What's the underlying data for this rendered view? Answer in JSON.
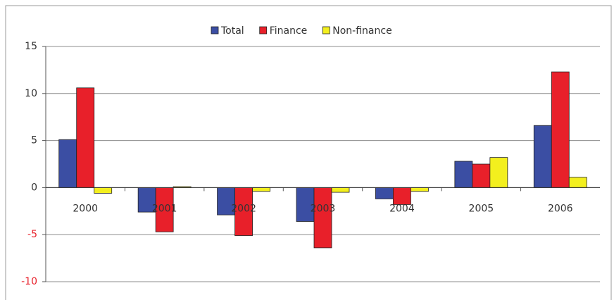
{
  "chart_data": {
    "type": "bar",
    "categories": [
      "2000",
      "2001",
      "2002",
      "2003",
      "2004",
      "2005",
      "2006"
    ],
    "series": [
      {
        "name": "Total",
        "color": "#3b4ea3",
        "values": [
          5.1,
          -2.6,
          -2.9,
          -3.6,
          -1.2,
          2.8,
          6.6
        ]
      },
      {
        "name": "Finance",
        "color": "#e8202a",
        "values": [
          10.6,
          -4.7,
          -5.1,
          -6.4,
          -1.8,
          2.5,
          12.3
        ]
      },
      {
        "name": "Non-finance",
        "color": "#f3ef1e",
        "values": [
          -0.6,
          0.1,
          -0.4,
          -0.5,
          -0.4,
          3.2,
          1.1
        ]
      }
    ],
    "ylim": [
      -10,
      15
    ],
    "yticks": [
      -10,
      -5,
      0,
      5,
      10,
      15
    ],
    "grid": true,
    "negative_tick_label_color": "#e8202a",
    "legend": "top"
  }
}
